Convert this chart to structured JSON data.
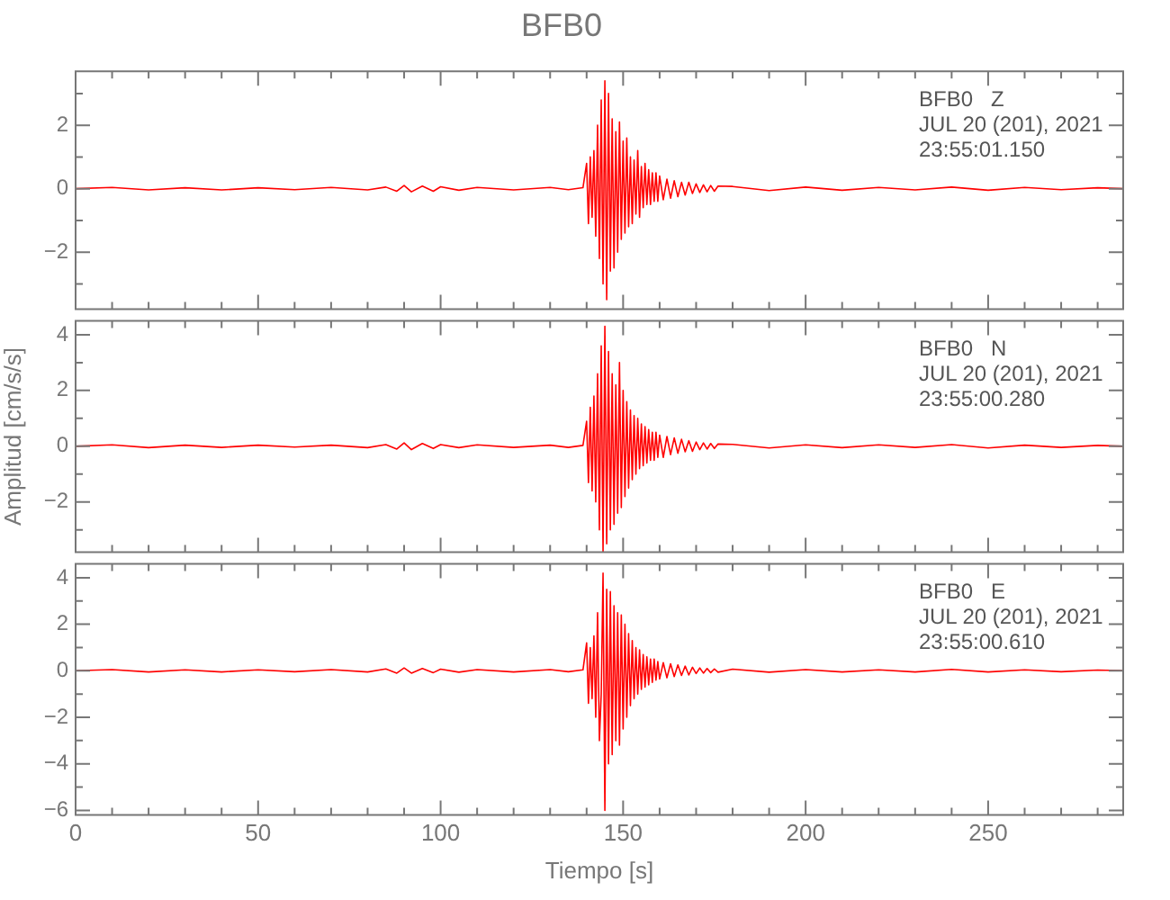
{
  "chart_data": [
    {
      "type": "line",
      "title": "BFB0",
      "annotations": [
        "BFB0   Z",
        "JUL 20 (201), 2021",
        "23:55:01.150"
      ],
      "x": [
        0,
        10,
        20,
        30,
        40,
        50,
        60,
        70,
        80,
        85,
        88,
        90,
        92,
        95,
        98,
        100,
        105,
        110,
        120,
        130,
        135,
        139,
        140,
        140.5,
        141,
        141.5,
        142,
        142.5,
        143,
        143.5,
        144,
        144.5,
        145,
        145.5,
        146,
        146.5,
        147,
        147.5,
        148,
        148.5,
        149,
        149.5,
        150,
        150.5,
        151,
        151.5,
        152,
        152.5,
        153,
        153.5,
        154,
        154.5,
        155,
        155.5,
        156,
        156.5,
        157,
        157.5,
        158,
        158.5,
        159,
        159.5,
        160,
        161,
        162,
        163,
        164,
        165,
        166,
        167,
        168,
        169,
        170,
        171,
        172,
        173,
        174,
        175,
        176,
        180,
        190,
        200,
        210,
        220,
        230,
        240,
        250,
        260,
        270,
        280,
        287
      ],
      "series": [
        {
          "color": "#ff0000",
          "values": [
            0,
            0.04,
            -0.04,
            0.03,
            -0.04,
            0.03,
            -0.03,
            0.04,
            -0.04,
            0.05,
            -0.08,
            0.1,
            -0.1,
            0.08,
            -0.08,
            0.06,
            -0.05,
            0.04,
            -0.04,
            0.04,
            -0.03,
            0.03,
            0.8,
            -1.1,
            1.0,
            -0.9,
            1.2,
            -1.5,
            2.0,
            -2.2,
            2.8,
            -3.0,
            3.4,
            -3.5,
            3.0,
            -2.6,
            2.2,
            -2.5,
            1.8,
            -2.0,
            2.1,
            -1.6,
            1.5,
            -1.4,
            1.6,
            -1.2,
            1.0,
            -1.1,
            0.9,
            -0.8,
            1.2,
            -0.9,
            0.7,
            -0.6,
            0.8,
            -0.5,
            0.6,
            -0.5,
            0.5,
            -0.4,
            0.5,
            -0.4,
            0.4,
            -0.35,
            0.3,
            -0.3,
            0.25,
            -0.25,
            0.2,
            -0.2,
            0.2,
            -0.15,
            0.15,
            -0.12,
            0.12,
            -0.1,
            0.1,
            -0.08,
            0.08,
            0.07,
            -0.06,
            0.05,
            -0.05,
            0.04,
            -0.04,
            0.05,
            -0.05,
            0.04,
            -0.03,
            0.03,
            0
          ]
        }
      ],
      "xlim": [
        0,
        287
      ],
      "xticks": [
        0,
        {
          "value": 10,
          "label": null
        },
        {
          "value": 20,
          "label": null
        },
        {
          "value": 30,
          "label": null
        },
        {
          "value": 40,
          "label": null
        },
        50,
        {
          "value": 60,
          "label": null
        },
        {
          "value": 70,
          "label": null
        },
        {
          "value": 80,
          "label": null
        },
        {
          "value": 90,
          "label": null
        },
        100,
        {
          "value": 110,
          "label": null
        },
        {
          "value": 120,
          "label": null
        },
        {
          "value": 130,
          "label": null
        },
        {
          "value": 140,
          "label": null
        },
        150,
        {
          "value": 160,
          "label": null
        },
        {
          "value": 170,
          "label": null
        },
        {
          "value": 180,
          "label": null
        },
        {
          "value": 190,
          "label": null
        },
        200,
        {
          "value": 210,
          "label": null
        },
        {
          "value": 220,
          "label": null
        },
        {
          "value": 230,
          "label": null
        },
        {
          "value": 240,
          "label": null
        },
        250,
        {
          "value": 260,
          "label": null
        },
        {
          "value": 270,
          "label": null
        },
        {
          "value": 280,
          "label": null
        }
      ],
      "ylim": [
        -3.8,
        3.7
      ],
      "yticks": [
        {
          "value": -3,
          "label": null
        },
        -2,
        {
          "value": -1,
          "label": null
        },
        0,
        {
          "value": 1,
          "label": null
        },
        2,
        {
          "value": 3,
          "label": null
        }
      ],
      "tick_labels": "y"
    },
    {
      "type": "line",
      "ylabel": "Amplitud [cm/s/s]",
      "annotations": [
        "BFB0   N",
        "JUL 20 (201), 2021",
        "23:55:00.280"
      ],
      "x": [
        0,
        10,
        20,
        30,
        40,
        50,
        60,
        70,
        80,
        85,
        88,
        90,
        92,
        95,
        98,
        100,
        105,
        110,
        120,
        130,
        135,
        139,
        140,
        140.5,
        141,
        141.5,
        142,
        142.5,
        143,
        143.5,
        144,
        144.5,
        145,
        145.5,
        146,
        146.5,
        147,
        147.5,
        148,
        148.5,
        149,
        149.5,
        150,
        150.5,
        151,
        151.5,
        152,
        152.5,
        153,
        153.5,
        154,
        154.5,
        155,
        155.5,
        156,
        156.5,
        157,
        157.5,
        158,
        158.5,
        159,
        159.5,
        160,
        161,
        162,
        163,
        164,
        165,
        166,
        167,
        168,
        169,
        170,
        171,
        172,
        173,
        174,
        175,
        176,
        180,
        190,
        200,
        210,
        220,
        230,
        240,
        250,
        260,
        270,
        280,
        287
      ],
      "series": [
        {
          "color": "#ff0000",
          "values": [
            0,
            0.05,
            -0.05,
            0.04,
            -0.04,
            0.04,
            -0.03,
            0.04,
            -0.05,
            0.06,
            -0.1,
            0.12,
            -0.12,
            0.1,
            -0.08,
            0.06,
            -0.05,
            0.05,
            -0.04,
            0.04,
            -0.04,
            0.03,
            0.9,
            -1.3,
            1.4,
            -1.6,
            1.8,
            -2.0,
            2.6,
            -3.0,
            3.6,
            -3.8,
            4.3,
            -3.5,
            3.4,
            -3.0,
            2.6,
            -2.8,
            2.2,
            -2.4,
            3.0,
            -2.2,
            2.0,
            -1.8,
            1.6,
            -1.5,
            1.3,
            -1.2,
            1.1,
            -1.0,
            1.0,
            -0.8,
            0.8,
            -0.7,
            0.7,
            -0.6,
            0.6,
            -0.5,
            0.5,
            -0.5,
            0.5,
            -0.4,
            0.4,
            -0.4,
            0.35,
            -0.3,
            0.3,
            -0.25,
            0.25,
            -0.2,
            0.2,
            -0.18,
            0.15,
            -0.12,
            0.12,
            -0.1,
            0.1,
            -0.08,
            0.08,
            0.07,
            -0.06,
            0.05,
            -0.05,
            0.05,
            -0.04,
            0.06,
            -0.06,
            0.04,
            -0.04,
            0.03,
            0
          ]
        }
      ],
      "xlim": [
        0,
        287
      ],
      "xticks": [
        0,
        {
          "value": 10,
          "label": null
        },
        {
          "value": 20,
          "label": null
        },
        {
          "value": 30,
          "label": null
        },
        {
          "value": 40,
          "label": null
        },
        50,
        {
          "value": 60,
          "label": null
        },
        {
          "value": 70,
          "label": null
        },
        {
          "value": 80,
          "label": null
        },
        {
          "value": 90,
          "label": null
        },
        100,
        {
          "value": 110,
          "label": null
        },
        {
          "value": 120,
          "label": null
        },
        {
          "value": 130,
          "label": null
        },
        {
          "value": 140,
          "label": null
        },
        150,
        {
          "value": 160,
          "label": null
        },
        {
          "value": 170,
          "label": null
        },
        {
          "value": 180,
          "label": null
        },
        {
          "value": 190,
          "label": null
        },
        200,
        {
          "value": 210,
          "label": null
        },
        {
          "value": 220,
          "label": null
        },
        {
          "value": 230,
          "label": null
        },
        {
          "value": 240,
          "label": null
        },
        250,
        {
          "value": 260,
          "label": null
        },
        {
          "value": 270,
          "label": null
        },
        {
          "value": 280,
          "label": null
        }
      ],
      "ylim": [
        -3.8,
        4.5
      ],
      "yticks": [
        {
          "value": -3,
          "label": null
        },
        -2,
        {
          "value": -1,
          "label": null
        },
        0,
        {
          "value": 1,
          "label": null
        },
        2,
        {
          "value": 3,
          "label": null
        },
        4
      ],
      "tick_labels": "y"
    },
    {
      "type": "line",
      "xlabel": "Tiempo [s]",
      "annotations": [
        "BFB0   E",
        "JUL 20 (201), 2021",
        "23:55:00.610"
      ],
      "x": [
        0,
        10,
        20,
        30,
        40,
        50,
        60,
        70,
        80,
        85,
        88,
        90,
        92,
        95,
        98,
        100,
        105,
        110,
        120,
        130,
        135,
        139,
        140,
        140.5,
        141,
        141.5,
        142,
        142.5,
        143,
        143.5,
        144,
        144.5,
        145,
        145.5,
        146,
        146.5,
        147,
        147.5,
        148,
        148.5,
        149,
        149.5,
        150,
        150.5,
        151,
        151.5,
        152,
        152.5,
        153,
        153.5,
        154,
        154.5,
        155,
        155.5,
        156,
        156.5,
        157,
        157.5,
        158,
        158.5,
        159,
        159.5,
        160,
        161,
        162,
        163,
        164,
        165,
        166,
        167,
        168,
        169,
        170,
        171,
        172,
        173,
        174,
        175,
        176,
        180,
        190,
        200,
        210,
        220,
        230,
        240,
        250,
        260,
        270,
        280,
        287
      ],
      "series": [
        {
          "color": "#ff0000",
          "values": [
            0,
            0.05,
            -0.05,
            0.04,
            -0.05,
            0.04,
            -0.04,
            0.05,
            -0.05,
            0.08,
            -0.1,
            0.12,
            -0.1,
            0.1,
            -0.08,
            0.07,
            -0.06,
            0.05,
            -0.05,
            0.05,
            -0.04,
            0.04,
            1.2,
            -1.4,
            1.0,
            -1.2,
            1.5,
            -2.0,
            2.5,
            -3.0,
            -1.0,
            4.2,
            -6.0,
            3.5,
            -4.0,
            3.4,
            -3.6,
            2.8,
            -3.0,
            2.5,
            -3.2,
            2.4,
            -2.5,
            2.0,
            -2.0,
            1.6,
            -1.5,
            1.3,
            -1.2,
            1.0,
            -1.0,
            0.9,
            -0.8,
            0.7,
            -0.7,
            0.6,
            -0.6,
            0.5,
            -0.5,
            0.5,
            -0.4,
            0.4,
            -0.35,
            0.35,
            -0.3,
            0.3,
            -0.25,
            0.25,
            -0.2,
            0.2,
            -0.18,
            0.15,
            -0.12,
            0.12,
            -0.1,
            0.1,
            -0.08,
            0.08,
            -0.06,
            0.07,
            -0.06,
            0.05,
            -0.05,
            0.04,
            -0.05,
            0.06,
            -0.05,
            0.04,
            -0.04,
            0.03,
            0
          ]
        }
      ],
      "xlim": [
        0,
        287
      ],
      "xticks": [
        0,
        {
          "value": 10,
          "label": null
        },
        {
          "value": 20,
          "label": null
        },
        {
          "value": 30,
          "label": null
        },
        {
          "value": 40,
          "label": null
        },
        50,
        {
          "value": 60,
          "label": null
        },
        {
          "value": 70,
          "label": null
        },
        {
          "value": 80,
          "label": null
        },
        {
          "value": 90,
          "label": null
        },
        100,
        {
          "value": 110,
          "label": null
        },
        {
          "value": 120,
          "label": null
        },
        {
          "value": 130,
          "label": null
        },
        {
          "value": 140,
          "label": null
        },
        150,
        {
          "value": 160,
          "label": null
        },
        {
          "value": 170,
          "label": null
        },
        {
          "value": 180,
          "label": null
        },
        {
          "value": 190,
          "label": null
        },
        200,
        {
          "value": 210,
          "label": null
        },
        {
          "value": 220,
          "label": null
        },
        {
          "value": 230,
          "label": null
        },
        {
          "value": 240,
          "label": null
        },
        250,
        {
          "value": 260,
          "label": null
        },
        {
          "value": 270,
          "label": null
        },
        {
          "value": 280,
          "label": null
        }
      ],
      "ylim": [
        -6.2,
        4.6
      ],
      "yticks": [
        -6,
        {
          "value": -5,
          "label": null
        },
        -4,
        {
          "value": -3,
          "label": null
        },
        -2,
        {
          "value": -1,
          "label": null
        },
        0,
        {
          "value": 1,
          "label": null
        },
        2,
        {
          "value": 3,
          "label": null
        },
        4
      ]
    }
  ]
}
